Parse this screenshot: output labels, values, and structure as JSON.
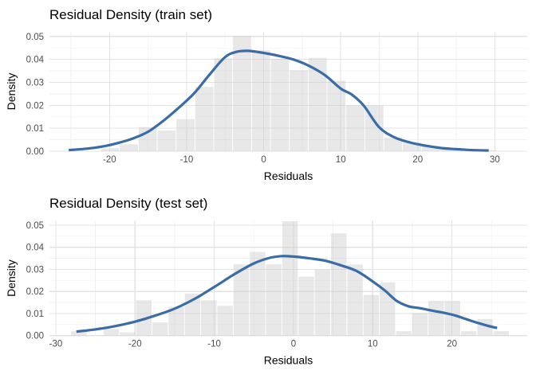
{
  "chart_data": [
    {
      "type": "histogram+density",
      "title": "Residual Density (train set)",
      "xlabel": "Residuals",
      "ylabel": "Density",
      "legend": "none",
      "grid": true,
      "x_range": [
        -27.8,
        34.2
      ],
      "x_ticks": [
        -20,
        -10,
        0,
        10,
        20,
        30
      ],
      "x_tick_labels": [
        "-20",
        "-10",
        "0",
        "10",
        "20",
        "30"
      ],
      "x_minor_ticks": [
        -25,
        -15,
        -5,
        5,
        15,
        25
      ],
      "y_range": [
        0,
        0.052
      ],
      "y_ticks": [
        0,
        0.01,
        0.02,
        0.03,
        0.04,
        0.05
      ],
      "y_tick_labels": [
        "0.00",
        "0.01",
        "0.02",
        "0.03",
        "0.04",
        "0.05"
      ],
      "y_minor_ticks": [
        0.005,
        0.015,
        0.025,
        0.035,
        0.045
      ],
      "bin_width": 2.45,
      "bars": {
        "centers": [
          -19.95,
          -17.5,
          -15.05,
          -12.6,
          -10.15,
          -7.7,
          -5.25,
          -2.8,
          -0.35,
          2.1,
          4.55,
          7.0,
          9.45,
          11.9,
          14.35,
          16.8,
          19.25,
          21.7,
          24.15,
          26.6,
          29.05
        ],
        "densities": [
          0.0013,
          0.003,
          0.0105,
          0.009,
          0.014,
          0.028,
          0.0405,
          0.0503,
          0.044,
          0.0403,
          0.0353,
          0.0407,
          0.0307,
          0.02,
          0.02,
          0.006,
          0.0037,
          0.0023,
          0.0014,
          0.0008,
          0.0005
        ]
      },
      "density_curve": {
        "x": [
          -25.3,
          -23,
          -21,
          -19,
          -17,
          -15,
          -13,
          -11,
          -9,
          -7,
          -5,
          -3.5,
          -2,
          0,
          2,
          4,
          6,
          8,
          10,
          11.5,
          13,
          15,
          17,
          19,
          21,
          23,
          25,
          27,
          29.2
        ],
        "y": [
          0.0005,
          0.0011,
          0.002,
          0.0035,
          0.0055,
          0.0085,
          0.0133,
          0.019,
          0.0253,
          0.0335,
          0.041,
          0.0433,
          0.0437,
          0.0428,
          0.0415,
          0.0398,
          0.037,
          0.033,
          0.0273,
          0.0245,
          0.0198,
          0.0104,
          0.006,
          0.0038,
          0.0024,
          0.0014,
          0.0009,
          0.0005,
          0.0003
        ]
      }
    },
    {
      "type": "histogram+density",
      "title": "Residual Density (test set)",
      "xlabel": "Residuals",
      "ylabel": "Density",
      "legend": "none",
      "grid": true,
      "x_range": [
        -30.8,
        29.5
      ],
      "x_ticks": [
        -30,
        -20,
        -10,
        0,
        10,
        20
      ],
      "x_tick_labels": [
        "-30",
        "-20",
        "-10",
        "0",
        "10",
        "20"
      ],
      "x_minor_ticks": [
        -25,
        -15,
        -5,
        5,
        15,
        25
      ],
      "y_range": [
        0,
        0.052
      ],
      "y_ticks": [
        0,
        0.01,
        0.02,
        0.03,
        0.04,
        0.05
      ],
      "y_tick_labels": [
        "0.00",
        "0.01",
        "0.02",
        "0.03",
        "0.04",
        "0.05"
      ],
      "y_minor_ticks": [
        0.005,
        0.015,
        0.025,
        0.035,
        0.045
      ],
      "bin_width": 2.05,
      "bars": {
        "centers": [
          -27.09,
          -22.99,
          -20.94,
          -18.89,
          -16.84,
          -14.79,
          -12.74,
          -10.69,
          -8.64,
          -6.59,
          -4.54,
          -2.49,
          -0.44,
          1.61,
          3.66,
          5.71,
          7.76,
          9.81,
          11.86,
          13.91,
          15.96,
          18.01,
          20.06,
          22.11,
          24.16,
          26.21
        ],
        "densities": [
          0.002,
          0.003,
          0.0015,
          0.016,
          0.006,
          0.013,
          0.019,
          0.016,
          0.0135,
          0.0323,
          0.0379,
          0.0323,
          0.0518,
          0.0267,
          0.0299,
          0.0463,
          0.0322,
          0.0184,
          0.0241,
          0.002,
          0.0103,
          0.0157,
          0.0157,
          0.002,
          0.0075,
          0.002
        ]
      },
      "density_curve": {
        "x": [
          -27.4,
          -25,
          -22.5,
          -20,
          -17.5,
          -15,
          -12.5,
          -10,
          -7.5,
          -5,
          -3,
          -1.5,
          0,
          2,
          4,
          6,
          8,
          10,
          11.5,
          13,
          14.5,
          16,
          17.5,
          19,
          20.5,
          22,
          23.5,
          25,
          25.7
        ],
        "y": [
          0.0018,
          0.0028,
          0.0043,
          0.0063,
          0.009,
          0.0122,
          0.0166,
          0.022,
          0.0277,
          0.0327,
          0.0352,
          0.036,
          0.0358,
          0.035,
          0.0339,
          0.0318,
          0.0292,
          0.0245,
          0.0205,
          0.0158,
          0.0133,
          0.0124,
          0.0113,
          0.0103,
          0.009,
          0.0072,
          0.0055,
          0.004,
          0.0035
        ]
      }
    }
  ],
  "style": {
    "background": "#ffffff",
    "bar_fill_rgb": "205,205,205",
    "bar_alpha": 0.45,
    "curve_color": "#3a6ca6",
    "curve_width": 3.2,
    "grid_major_color": "#e3e3e3",
    "grid_minor_color": "#f1f1f1",
    "tick_label_color": "#4d4d4d",
    "text_color": "#000000"
  }
}
